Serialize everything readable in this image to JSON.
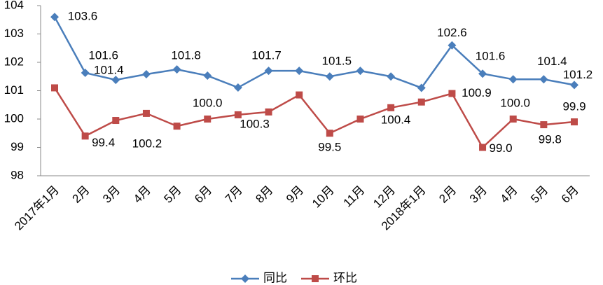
{
  "chart_data": {
    "type": "line",
    "categories": [
      "2017年1月",
      "2月",
      "3月",
      "4月",
      "5月",
      "6月",
      "7月",
      "8月",
      "9月",
      "10月",
      "11月",
      "12月",
      "2018年1月",
      "2月",
      "3月",
      "4月",
      "5月",
      "6月"
    ],
    "series": [
      {
        "name": "同比",
        "color": "#4a7ebb",
        "marker": "diamond",
        "values": [
          103.6,
          101.63,
          101.38,
          101.58,
          101.75,
          101.53,
          101.11,
          101.7,
          101.7,
          101.5,
          101.7,
          101.5,
          101.1,
          102.6,
          101.6,
          101.4,
          101.4,
          101.2
        ],
        "value_labels": [
          "103.6",
          "101.6",
          "101.4",
          null,
          "101.8",
          null,
          null,
          "101.7",
          null,
          "101.5",
          null,
          null,
          null,
          "102.6",
          "101.6",
          null,
          "101.4",
          "101.2"
        ]
      },
      {
        "name": "环比",
        "color": "#be4b48",
        "marker": "square",
        "values": [
          101.1,
          99.4,
          99.95,
          100.2,
          99.75,
          100.0,
          100.15,
          100.25,
          100.85,
          99.5,
          100.0,
          100.4,
          100.6,
          100.9,
          99.0,
          100.0,
          99.8,
          99.9
        ],
        "value_labels": [
          null,
          "99.4",
          null,
          "100.2",
          null,
          "100.0",
          null,
          "100.3",
          null,
          "99.5",
          null,
          "100.4",
          null,
          "100.9",
          "99.0",
          "100.0",
          "99.8",
          "99.9"
        ]
      }
    ],
    "ylim": [
      98,
      104
    ],
    "yticks": [
      98,
      99,
      100,
      101,
      102,
      103,
      104
    ],
    "grid": false,
    "legend": "bottom"
  }
}
